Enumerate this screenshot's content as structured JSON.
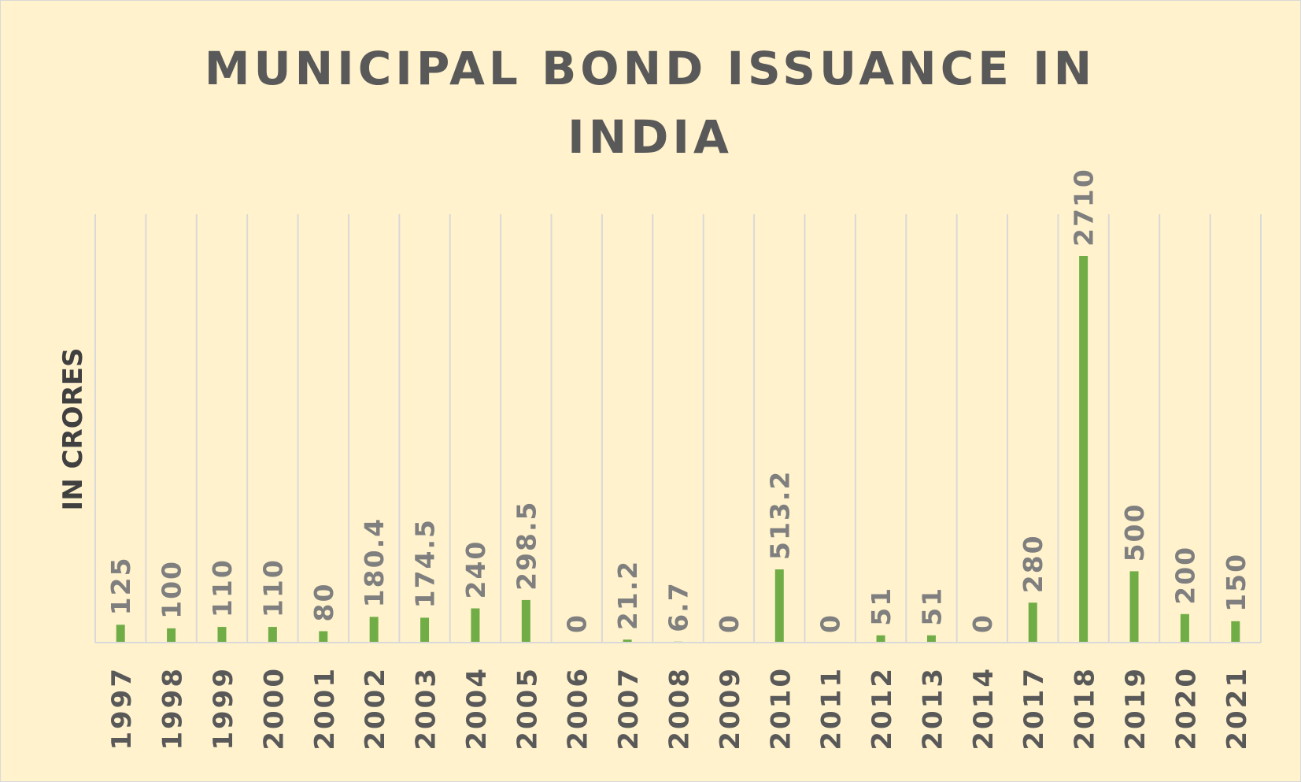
{
  "chart_data": {
    "type": "bar",
    "title_lines": [
      "MUNICIPAL BOND ISSUANCE IN",
      "INDIA"
    ],
    "xlabel": "",
    "ylabel": "IN CRORES",
    "categories": [
      "1997",
      "1998",
      "1999",
      "2000",
      "2001",
      "2002",
      "2003",
      "2004",
      "2005",
      "2006",
      "2007",
      "2008",
      "2009",
      "2010",
      "2011",
      "2012",
      "2013",
      "2014",
      "2017",
      "2018",
      "2019",
      "2020",
      "2021"
    ],
    "values": [
      125,
      100,
      110,
      110,
      80,
      180.4,
      174.5,
      240,
      298.5,
      0,
      21.2,
      6.7,
      0,
      513.2,
      0,
      51,
      51,
      0,
      280,
      2710,
      500,
      200,
      150
    ],
    "data_labels": [
      "125",
      "100",
      "110",
      "110",
      "80",
      "180.4",
      "174.5",
      "240",
      "298.5",
      "0",
      "21.2",
      "6.7",
      "0",
      "513.2",
      "0",
      "51",
      "51",
      "0",
      "280",
      "2710",
      "500",
      "200",
      "150"
    ],
    "ylim": [
      0,
      2710
    ],
    "grid": "vertical",
    "legend": "none",
    "colors": {
      "bar": "#70ad47",
      "background": "#fff2cc",
      "gridline": "#d9d9d9",
      "title": "#595959",
      "data_label": "#7f7f7f",
      "tick_label": "#595959",
      "axis_title": "#404040"
    }
  }
}
